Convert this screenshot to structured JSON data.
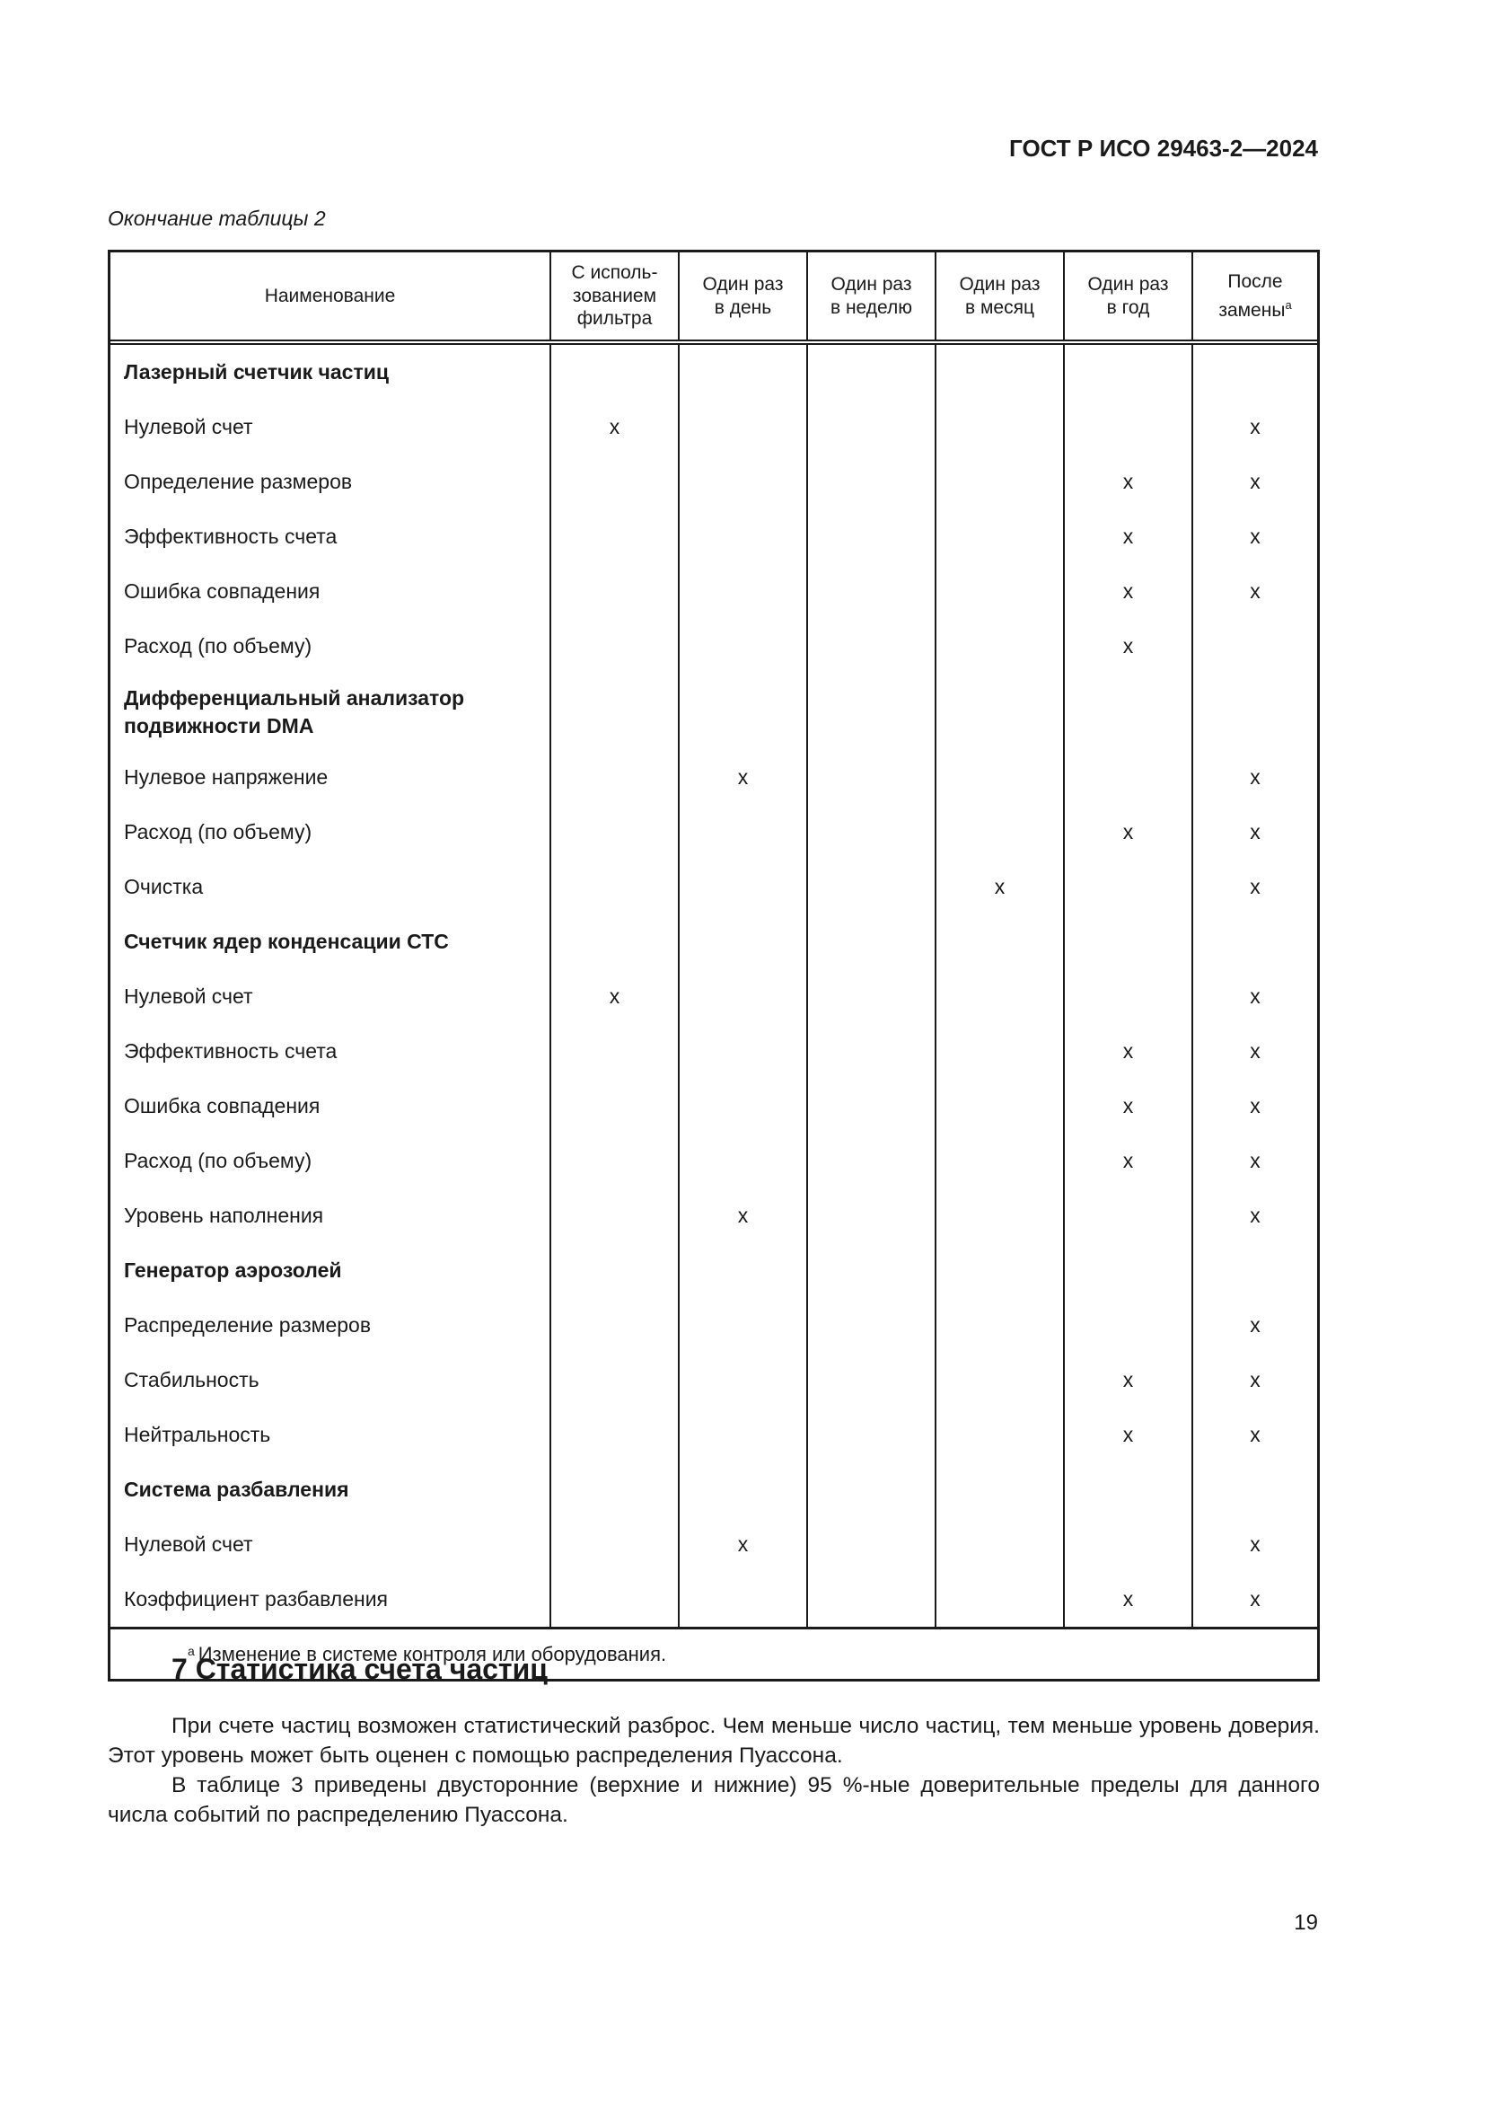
{
  "header": {
    "doc_id": "ГОСТ Р ИСО 29463-2—2024"
  },
  "table": {
    "caption": "Окончание таблицы 2",
    "columns": [
      "Наименование",
      "С исполь-\nзованием\nфильтра",
      "Один раз\nв день",
      "Один раз\nв неделю",
      "Один раз\nв месяц",
      "Один раз\nв год",
      "После\nзамены"
    ],
    "last_column_footnote_mark": "a",
    "rows": [
      {
        "name": "Лазерный счетчик частиц",
        "group": true,
        "marks": [
          "",
          "",
          "",
          "",
          "",
          ""
        ]
      },
      {
        "name": "Нулевой счет",
        "marks": [
          "x",
          "",
          "",
          "",
          "",
          "x"
        ]
      },
      {
        "name": "Определение размеров",
        "marks": [
          "",
          "",
          "",
          "",
          "x",
          "x"
        ]
      },
      {
        "name": "Эффективность счета",
        "marks": [
          "",
          "",
          "",
          "",
          "x",
          "x"
        ]
      },
      {
        "name": "Ошибка совпадения",
        "marks": [
          "",
          "",
          "",
          "",
          "x",
          "x"
        ]
      },
      {
        "name": "Расход (по объему)",
        "marks": [
          "",
          "",
          "",
          "",
          "x",
          ""
        ]
      },
      {
        "name": "Дифференциальный анализатор подвижности DMA",
        "group": true,
        "tall": true,
        "marks": [
          "",
          "",
          "",
          "",
          "",
          ""
        ]
      },
      {
        "name": "Нулевое напряжение",
        "marks": [
          "",
          "x",
          "",
          "",
          "",
          "x"
        ]
      },
      {
        "name": "Расход (по объему)",
        "marks": [
          "",
          "",
          "",
          "",
          "x",
          "x"
        ]
      },
      {
        "name": "Очистка",
        "marks": [
          "",
          "",
          "",
          "x",
          "",
          "x"
        ]
      },
      {
        "name": "Счетчик ядер конденсации СТС",
        "group": true,
        "marks": [
          "",
          "",
          "",
          "",
          "",
          ""
        ]
      },
      {
        "name": "Нулевой счет",
        "marks": [
          "x",
          "",
          "",
          "",
          "",
          "x"
        ]
      },
      {
        "name": "Эффективность счета",
        "marks": [
          "",
          "",
          "",
          "",
          "x",
          "x"
        ]
      },
      {
        "name": "Ошибка совпадения",
        "marks": [
          "",
          "",
          "",
          "",
          "x",
          "x"
        ]
      },
      {
        "name": "Расход (по объему)",
        "marks": [
          "",
          "",
          "",
          "",
          "x",
          "x"
        ]
      },
      {
        "name": "Уровень наполнения",
        "marks": [
          "",
          "x",
          "",
          "",
          "",
          "x"
        ]
      },
      {
        "name": "Генератор аэрозолей",
        "group": true,
        "marks": [
          "",
          "",
          "",
          "",
          "",
          ""
        ]
      },
      {
        "name": "Распределение размеров",
        "marks": [
          "",
          "",
          "",
          "",
          "",
          "x"
        ]
      },
      {
        "name": "Стабильность",
        "marks": [
          "",
          "",
          "",
          "",
          "x",
          "x"
        ]
      },
      {
        "name": "Нейтральность",
        "marks": [
          "",
          "",
          "",
          "",
          "x",
          "x"
        ]
      },
      {
        "name": "Система разбавления",
        "group": true,
        "marks": [
          "",
          "",
          "",
          "",
          "",
          ""
        ]
      },
      {
        "name": "Нулевой счет",
        "marks": [
          "",
          "x",
          "",
          "",
          "",
          "x"
        ]
      },
      {
        "name": "Коэффициент разбавления",
        "marks": [
          "",
          "",
          "",
          "",
          "x",
          "x"
        ]
      }
    ],
    "footnote": {
      "mark": "a",
      "text": "Изменение в системе контроля или оборудования."
    }
  },
  "section": {
    "title": "7 Статистика счета частиц",
    "paragraphs": [
      "При счете частиц возможен статистический разброс. Чем меньше число частиц, тем меньше уровень доверия. Этот уровень может быть оценен с помощью распределения Пуассона.",
      "В таблице 3 приведены двусторонние (верхние и нижние) 95 %-ные доверительные пределы для данного числа событий по распределению Пуассона."
    ]
  },
  "page_number": "19"
}
